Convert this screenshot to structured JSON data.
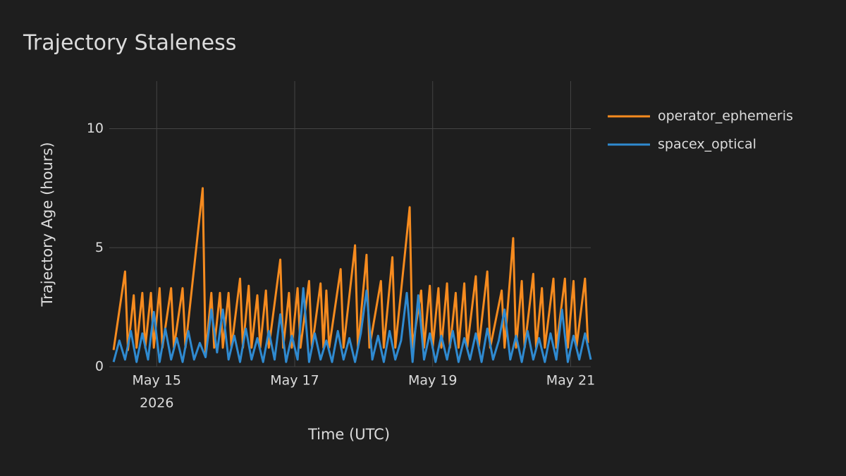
{
  "chart_data": {
    "type": "line",
    "title": "Trajectory Staleness",
    "xlabel": "Time (UTC)",
    "ylabel": "Trajectory Age (hours)",
    "xlim": [
      "2026-05-14T07:30",
      "2026-05-21T07:00"
    ],
    "xticks": [
      {
        "value": "2026-05-15T00:00",
        "label": "May 15"
      },
      {
        "value": "2026-05-17T00:00",
        "label": "May 17"
      },
      {
        "value": "2026-05-19T00:00",
        "label": "May 19"
      },
      {
        "value": "2026-05-21T00:00",
        "label": "May 21"
      }
    ],
    "x_year_label": "2026",
    "ylim": [
      0,
      12
    ],
    "yticks": [
      0,
      5,
      10
    ],
    "grid": true,
    "legend": "right",
    "series": [
      {
        "name": "operator_ephemeris",
        "color": "#f68b1f",
        "x": [
          "2026-05-14T09:00",
          "2026-05-14T13:00",
          "2026-05-14T14:00",
          "2026-05-14T16:00",
          "2026-05-14T17:00",
          "2026-05-14T19:00",
          "2026-05-14T20:00",
          "2026-05-14T22:00",
          "2026-05-14T23:00",
          "2026-05-15T01:00",
          "2026-05-15T02:00",
          "2026-05-15T05:00",
          "2026-05-15T06:00",
          "2026-05-15T09:00",
          "2026-05-15T10:00",
          "2026-05-15T16:00",
          "2026-05-15T17:00",
          "2026-05-15T19:00",
          "2026-05-15T20:00",
          "2026-05-15T22:00",
          "2026-05-15T23:00",
          "2026-05-16T01:00",
          "2026-05-16T02:00",
          "2026-05-16T05:00",
          "2026-05-16T06:00",
          "2026-05-16T08:00",
          "2026-05-16T09:00",
          "2026-05-16T11:00",
          "2026-05-16T12:00",
          "2026-05-16T14:00",
          "2026-05-16T15:00",
          "2026-05-16T19:00",
          "2026-05-16T20:00",
          "2026-05-16T22:00",
          "2026-05-16T23:00",
          "2026-05-17T01:00",
          "2026-05-17T02:00",
          "2026-05-17T05:00",
          "2026-05-17T06:00",
          "2026-05-17T09:00",
          "2026-05-17T10:00",
          "2026-05-17T11:00",
          "2026-05-17T12:00",
          "2026-05-17T16:00",
          "2026-05-17T17:00",
          "2026-05-17T21:00",
          "2026-05-17T22:00",
          "2026-05-18T01:00",
          "2026-05-18T02:00",
          "2026-05-18T06:00",
          "2026-05-18T07:00",
          "2026-05-18T10:00",
          "2026-05-18T11:00",
          "2026-05-18T16:00",
          "2026-05-18T17:00",
          "2026-05-18T20:00",
          "2026-05-18T21:00",
          "2026-05-18T23:00",
          "2026-05-19T00:00",
          "2026-05-19T02:00",
          "2026-05-19T03:00",
          "2026-05-19T05:00",
          "2026-05-19T06:00",
          "2026-05-19T08:00",
          "2026-05-19T09:00",
          "2026-05-19T11:00",
          "2026-05-19T12:00",
          "2026-05-19T15:00",
          "2026-05-19T16:00",
          "2026-05-19T19:00",
          "2026-05-19T20:00",
          "2026-05-20T00:00",
          "2026-05-20T01:00",
          "2026-05-20T04:00",
          "2026-05-20T05:00",
          "2026-05-20T07:00",
          "2026-05-20T08:00",
          "2026-05-20T11:00",
          "2026-05-20T12:00",
          "2026-05-20T14:00",
          "2026-05-20T15:00",
          "2026-05-20T18:00",
          "2026-05-20T19:00",
          "2026-05-20T22:00",
          "2026-05-20T23:00",
          "2026-05-21T01:00",
          "2026-05-21T02:00",
          "2026-05-21T05:00",
          "2026-05-21T06:00"
        ],
        "values": [
          0.7,
          4.0,
          0.7,
          3.0,
          0.8,
          3.1,
          0.8,
          3.1,
          0.8,
          3.3,
          0.8,
          3.3,
          0.8,
          3.3,
          0.8,
          7.5,
          0.5,
          3.1,
          0.8,
          3.1,
          0.8,
          3.1,
          0.8,
          3.7,
          0.8,
          3.4,
          0.8,
          3.0,
          0.8,
          3.2,
          0.8,
          4.5,
          0.8,
          3.1,
          0.8,
          3.3,
          0.8,
          3.6,
          0.8,
          3.5,
          0.8,
          3.2,
          0.8,
          4.1,
          0.8,
          5.1,
          0.8,
          4.7,
          0.8,
          3.6,
          0.8,
          4.6,
          0.8,
          6.7,
          0.8,
          3.2,
          0.8,
          3.4,
          0.8,
          3.3,
          0.8,
          3.5,
          0.8,
          3.1,
          0.8,
          3.5,
          0.8,
          3.8,
          0.8,
          4.0,
          0.8,
          3.2,
          0.8,
          5.4,
          0.8,
          3.6,
          0.8,
          3.9,
          0.8,
          3.3,
          0.8,
          3.7,
          0.8,
          3.7,
          0.8,
          3.6,
          0.8,
          3.7,
          1.0
        ]
      },
      {
        "name": "spacex_optical",
        "color": "#2f8ad0",
        "x": [
          "2026-05-14T09:00",
          "2026-05-14T11:00",
          "2026-05-14T13:00",
          "2026-05-14T15:00",
          "2026-05-14T17:00",
          "2026-05-14T19:00",
          "2026-05-14T21:00",
          "2026-05-14T23:00",
          "2026-05-15T01:00",
          "2026-05-15T03:00",
          "2026-05-15T05:00",
          "2026-05-15T07:00",
          "2026-05-15T09:00",
          "2026-05-15T11:00",
          "2026-05-15T13:00",
          "2026-05-15T15:00",
          "2026-05-15T17:00",
          "2026-05-15T19:00",
          "2026-05-15T21:00",
          "2026-05-15T23:00",
          "2026-05-16T01:00",
          "2026-05-16T03:00",
          "2026-05-16T05:00",
          "2026-05-16T07:00",
          "2026-05-16T09:00",
          "2026-05-16T11:00",
          "2026-05-16T13:00",
          "2026-05-16T15:00",
          "2026-05-16T17:00",
          "2026-05-16T19:00",
          "2026-05-16T21:00",
          "2026-05-16T23:00",
          "2026-05-17T01:00",
          "2026-05-17T03:00",
          "2026-05-17T05:00",
          "2026-05-17T07:00",
          "2026-05-17T09:00",
          "2026-05-17T11:00",
          "2026-05-17T13:00",
          "2026-05-17T15:00",
          "2026-05-17T17:00",
          "2026-05-17T19:00",
          "2026-05-17T21:00",
          "2026-05-17T23:00",
          "2026-05-18T01:00",
          "2026-05-18T03:00",
          "2026-05-18T05:00",
          "2026-05-18T07:00",
          "2026-05-18T09:00",
          "2026-05-18T11:00",
          "2026-05-18T13:00",
          "2026-05-18T15:00",
          "2026-05-18T17:00",
          "2026-05-18T19:00",
          "2026-05-18T21:00",
          "2026-05-18T23:00",
          "2026-05-19T01:00",
          "2026-05-19T03:00",
          "2026-05-19T05:00",
          "2026-05-19T07:00",
          "2026-05-19T09:00",
          "2026-05-19T11:00",
          "2026-05-19T13:00",
          "2026-05-19T15:00",
          "2026-05-19T17:00",
          "2026-05-19T19:00",
          "2026-05-19T21:00",
          "2026-05-19T23:00",
          "2026-05-20T01:00",
          "2026-05-20T03:00",
          "2026-05-20T05:00",
          "2026-05-20T07:00",
          "2026-05-20T09:00",
          "2026-05-20T11:00",
          "2026-05-20T13:00",
          "2026-05-20T15:00",
          "2026-05-20T17:00",
          "2026-05-20T19:00",
          "2026-05-20T21:00",
          "2026-05-20T23:00",
          "2026-05-21T01:00",
          "2026-05-21T03:00",
          "2026-05-21T05:00",
          "2026-05-21T07:00"
        ],
        "values": [
          0.2,
          1.1,
          0.3,
          1.5,
          0.2,
          1.4,
          0.3,
          2.3,
          0.2,
          1.6,
          0.3,
          1.2,
          0.2,
          1.5,
          0.3,
          1.0,
          0.4,
          2.4,
          0.6,
          2.4,
          0.3,
          1.3,
          0.2,
          1.6,
          0.3,
          1.2,
          0.2,
          1.5,
          0.3,
          2.2,
          0.2,
          1.3,
          0.3,
          3.3,
          0.2,
          1.4,
          0.3,
          1.1,
          0.2,
          1.5,
          0.3,
          1.2,
          0.2,
          1.4,
          3.2,
          0.3,
          1.3,
          0.2,
          1.5,
          0.3,
          1.1,
          3.1,
          0.2,
          3.0,
          0.3,
          1.4,
          0.2,
          1.3,
          0.3,
          1.5,
          0.2,
          1.2,
          0.3,
          1.4,
          0.2,
          1.6,
          0.3,
          1.1,
          2.4,
          0.3,
          1.3,
          0.2,
          1.5,
          0.3,
          1.2,
          0.2,
          1.4,
          0.3,
          2.4,
          0.2,
          1.3,
          0.3,
          1.4,
          0.3
        ]
      }
    ]
  }
}
